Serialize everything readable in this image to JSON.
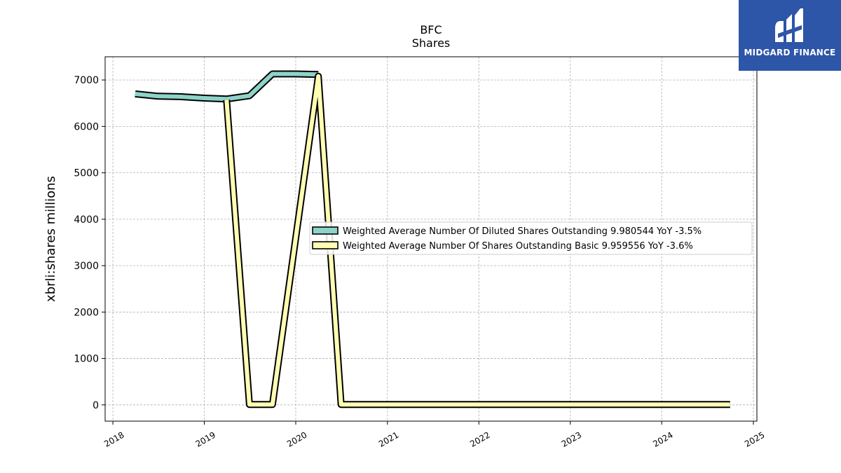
{
  "chart_data": {
    "type": "line",
    "title": "BFC",
    "subtitle": "Shares",
    "xlabel": "",
    "ylabel": "xbrli:shares millions",
    "xlim": [
      "2017-12-01",
      "2025-01-15"
    ],
    "ylim": [
      -350,
      7500
    ],
    "x_ticks": [
      "2018",
      "2019",
      "2020",
      "2021",
      "2022",
      "2023",
      "2024",
      "2025"
    ],
    "y_ticks": [
      0,
      1000,
      2000,
      3000,
      4000,
      5000,
      6000,
      7000
    ],
    "grid": true,
    "legend_position": "center-right",
    "series": [
      {
        "name": "Weighted Average Number Of Diluted Shares Outstanding  9.980544 YoY -3.5%",
        "color": "#8dd3c7",
        "points": [
          {
            "x": "2018-03-31",
            "y": 6700
          },
          {
            "x": "2018-06-30",
            "y": 6650
          },
          {
            "x": "2018-09-30",
            "y": 6640
          },
          {
            "x": "2018-12-31",
            "y": 6610
          },
          {
            "x": "2019-03-31",
            "y": 6590
          },
          {
            "x": "2019-06-30",
            "y": 6660
          },
          {
            "x": "2019-09-30",
            "y": 7130
          },
          {
            "x": "2019-12-31",
            "y": 7130
          },
          {
            "x": "2020-03-31",
            "y": 7120
          }
        ]
      },
      {
        "name": "Weighted Average Number Of Shares Outstanding Basic  9.959556 YoY -3.6%",
        "color": "#ffffb3",
        "points": [
          {
            "x": "2019-03-31",
            "y": 6570
          },
          {
            "x": "2019-06-30",
            "y": 10
          },
          {
            "x": "2019-09-30",
            "y": 10
          },
          {
            "x": "2020-03-31",
            "y": 7080
          },
          {
            "x": "2020-06-30",
            "y": 10
          },
          {
            "x": "2024-09-30",
            "y": 10
          }
        ]
      }
    ]
  },
  "logo": {
    "text": "MIDGARD FINANCE"
  }
}
